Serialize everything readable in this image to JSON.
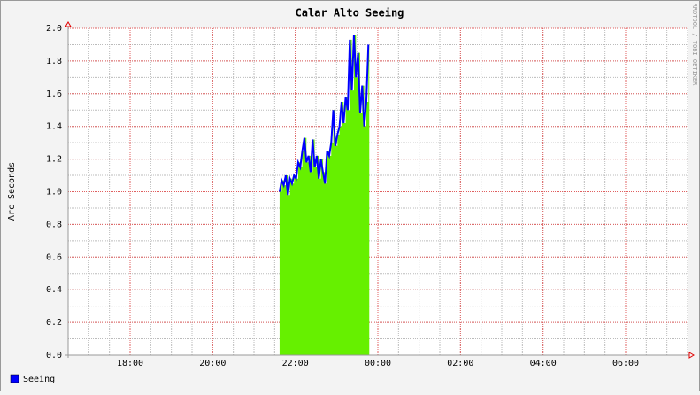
{
  "chart_data": {
    "type": "area",
    "title": "Calar Alto Seeing",
    "ylabel": "Arc Seconds",
    "watermark": "RRDTOOL / TOBI OETIKER",
    "x": [
      21.62,
      21.67,
      21.72,
      21.77,
      21.82,
      21.87,
      21.92,
      21.97,
      22.02,
      22.07,
      22.12,
      22.17,
      22.22,
      22.27,
      22.32,
      22.37,
      22.42,
      22.47,
      22.52,
      22.57,
      22.62,
      22.67,
      22.72,
      22.77,
      22.82,
      22.87,
      22.92,
      22.97,
      23.02,
      23.07,
      23.12,
      23.17,
      23.22,
      23.27,
      23.32,
      23.37,
      23.42,
      23.47,
      23.52,
      23.57,
      23.62,
      23.67,
      23.72,
      23.77
    ],
    "series": [
      {
        "name": "Seeing",
        "color": "#0000ff",
        "fill": "#66f000",
        "values": [
          1.0,
          1.07,
          1.04,
          1.1,
          0.98,
          1.08,
          1.05,
          1.1,
          1.08,
          1.18,
          1.15,
          1.25,
          1.33,
          1.18,
          1.22,
          1.12,
          1.32,
          1.15,
          1.22,
          1.08,
          1.2,
          1.12,
          1.05,
          1.25,
          1.22,
          1.3,
          1.5,
          1.28,
          1.35,
          1.4,
          1.55,
          1.42,
          1.58,
          1.5,
          1.93,
          1.62,
          1.96,
          1.7,
          1.85,
          1.48,
          1.65,
          1.4,
          1.55,
          1.9
        ]
      }
    ],
    "xlim": [
      16.5,
      31.5
    ],
    "xticks": [
      {
        "value": 18,
        "label": "18:00"
      },
      {
        "value": 20,
        "label": "20:00"
      },
      {
        "value": 22,
        "label": "22:00"
      },
      {
        "value": 24,
        "label": "00:00"
      },
      {
        "value": 26,
        "label": "02:00"
      },
      {
        "value": 28,
        "label": "04:00"
      },
      {
        "value": 30,
        "label": "06:00"
      }
    ],
    "ylim": [
      0,
      2
    ],
    "yticks": [
      {
        "value": 0,
        "label": "0.0"
      },
      {
        "value": 0.2,
        "label": "0.2"
      },
      {
        "value": 0.4,
        "label": "0.4"
      },
      {
        "value": 0.6,
        "label": "0.6"
      },
      {
        "value": 0.8,
        "label": "0.8"
      },
      {
        "value": 1,
        "label": "1.0"
      },
      {
        "value": 1.2,
        "label": "1.2"
      },
      {
        "value": 1.4,
        "label": "1.4"
      },
      {
        "value": 1.6,
        "label": "1.6"
      },
      {
        "value": 1.8,
        "label": "1.8"
      },
      {
        "value": 2,
        "label": "2.0"
      }
    ],
    "grid": true,
    "minor_grid": true
  }
}
